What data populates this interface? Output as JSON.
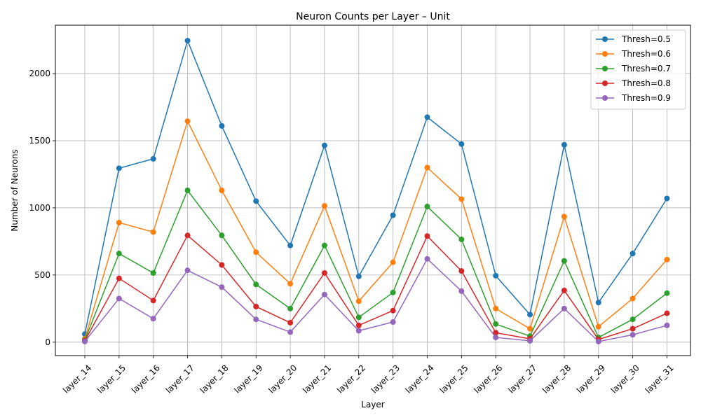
{
  "chart_data": {
    "type": "line",
    "title": "Neuron Counts per Layer – Unit",
    "xlabel": "Layer",
    "ylabel": "Number of Neurons",
    "categories": [
      "layer_14",
      "layer_15",
      "layer_16",
      "layer_17",
      "layer_18",
      "layer_19",
      "layer_20",
      "layer_21",
      "layer_22",
      "layer_23",
      "layer_24",
      "layer_25",
      "layer_26",
      "layer_27",
      "layer_28",
      "layer_29",
      "layer_30",
      "layer_31"
    ],
    "y_ticks": [
      0,
      500,
      1000,
      1500,
      2000
    ],
    "ylim": [
      -100,
      2360
    ],
    "grid": true,
    "legend_position": "top-right",
    "series": [
      {
        "name": "Thresh=0.5",
        "color": "#1f77b4",
        "values": [
          60,
          1295,
          1365,
          2245,
          1610,
          1050,
          720,
          1465,
          490,
          945,
          1675,
          1475,
          495,
          205,
          1470,
          295,
          660,
          1070
        ]
      },
      {
        "name": "Thresh=0.6",
        "color": "#ff7f0e",
        "values": [
          25,
          890,
          820,
          1645,
          1130,
          670,
          435,
          1015,
          305,
          595,
          1300,
          1065,
          250,
          100,
          935,
          115,
          325,
          615
        ]
      },
      {
        "name": "Thresh=0.7",
        "color": "#2ca02c",
        "values": [
          15,
          660,
          515,
          1130,
          795,
          430,
          250,
          720,
          185,
          370,
          1010,
          765,
          135,
          45,
          605,
          35,
          170,
          365
        ]
      },
      {
        "name": "Thresh=0.8",
        "color": "#d62728",
        "values": [
          10,
          475,
          310,
          795,
          575,
          265,
          145,
          515,
          125,
          235,
          790,
          530,
          70,
          25,
          385,
          20,
          100,
          215
        ]
      },
      {
        "name": "Thresh=0.9",
        "color": "#9467bd",
        "values": [
          5,
          325,
          175,
          535,
          410,
          170,
          75,
          355,
          85,
          150,
          620,
          380,
          35,
          10,
          250,
          5,
          55,
          125
        ]
      }
    ]
  }
}
